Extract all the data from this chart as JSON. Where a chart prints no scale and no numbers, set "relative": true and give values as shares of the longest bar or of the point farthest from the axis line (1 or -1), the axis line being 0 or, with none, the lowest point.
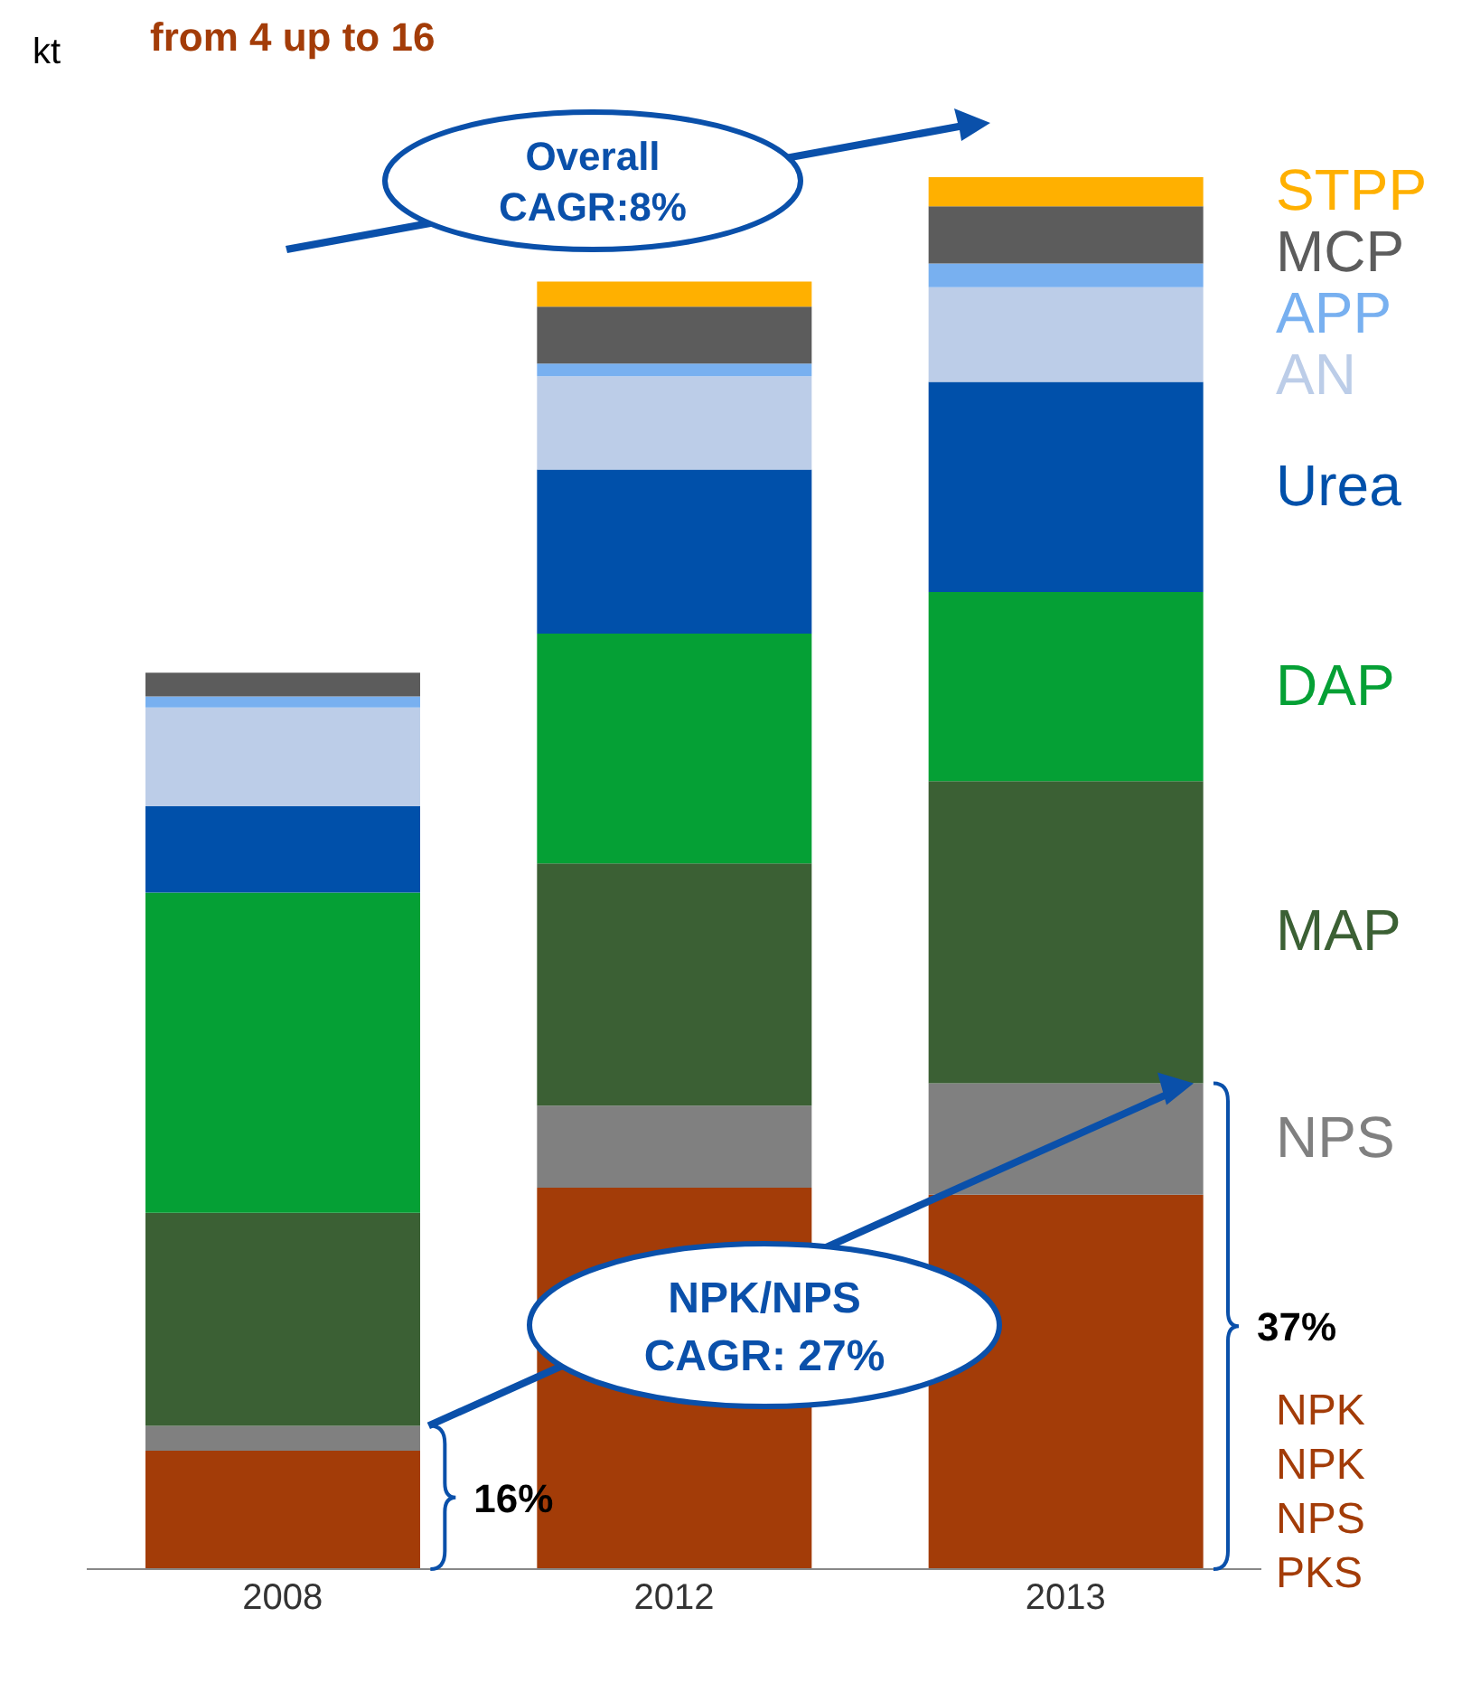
{
  "chart_data": {
    "type": "bar",
    "subtitle": "from 4 up to 16",
    "ylabel": "kt",
    "relative": true,
    "stacked": true,
    "legend": false,
    "grid": false,
    "categories": [
      "2008",
      "2012",
      "2013"
    ],
    "series": [
      {
        "name": "NPK NPK NPS PKS",
        "color": "#a33c08",
        "values": [
          0.085,
          0.274,
          0.269
        ]
      },
      {
        "name": "NPS",
        "color": "#808080",
        "values": [
          0.018,
          0.059,
          0.08
        ]
      },
      {
        "name": "MAP",
        "color": "#3b6034",
        "values": [
          0.153,
          0.174,
          0.217
        ]
      },
      {
        "name": "DAP",
        "color": "#05a035",
        "values": [
          0.23,
          0.165,
          0.136
        ]
      },
      {
        "name": "Urea",
        "color": "#0050aa",
        "values": [
          0.062,
          0.118,
          0.151
        ]
      },
      {
        "name": "AN",
        "color": "#bccde8",
        "values": [
          0.071,
          0.067,
          0.068
        ]
      },
      {
        "name": "APP",
        "color": "#78b0f0",
        "values": [
          0.008,
          0.009,
          0.017
        ]
      },
      {
        "name": "MCP",
        "color": "#5c5c5c",
        "values": [
          0.017,
          0.041,
          0.041
        ]
      },
      {
        "name": "STPP",
        "color": "#ffb000",
        "values": [
          0,
          0.018,
          0.021
        ]
      }
    ],
    "annotations": [
      "Overall CAGR:8%",
      "NPK/NPS CAGR: 27%",
      "16%",
      "37%"
    ]
  }
}
